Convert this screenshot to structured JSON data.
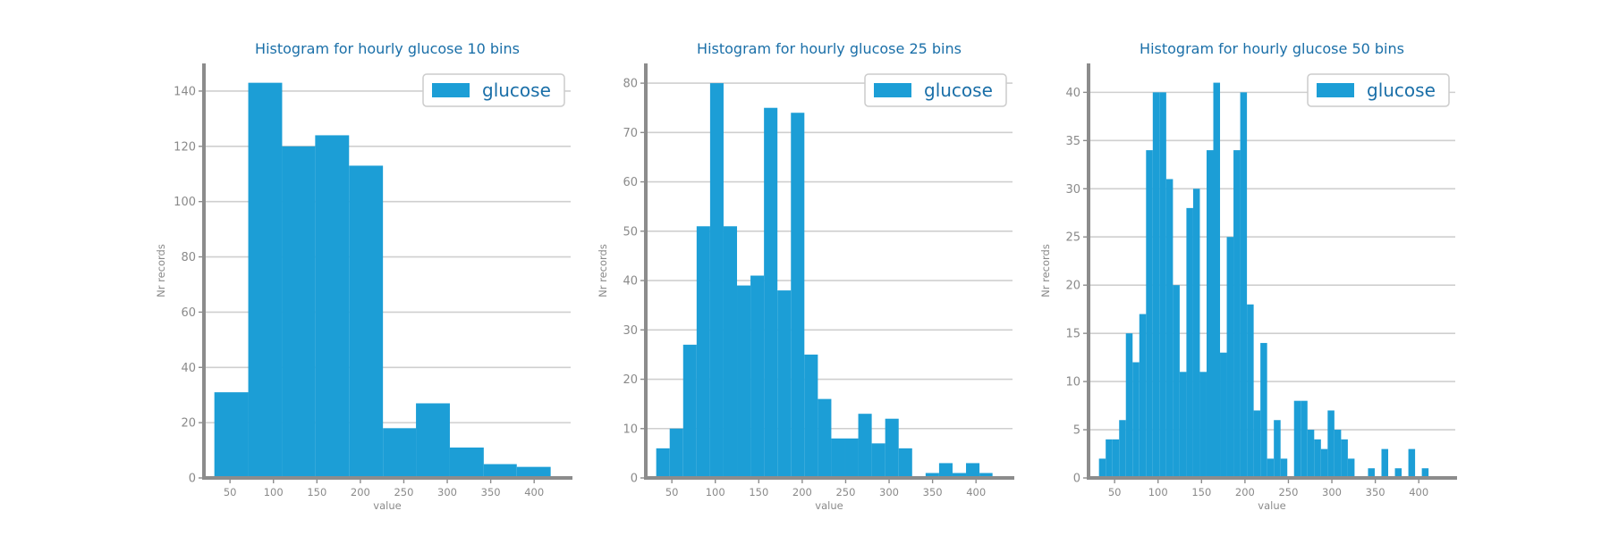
{
  "chart_data": [
    {
      "type": "bar",
      "title": "Histogram for hourly glucose 10 bins",
      "xlabel": "value",
      "ylabel": "Nr records",
      "legend": {
        "label": "glucose",
        "position": "top-right"
      },
      "color": "#1c9ed6",
      "xlim": [
        20,
        442
      ],
      "ylim": [
        0,
        150
      ],
      "xticks": [
        50,
        100,
        150,
        200,
        250,
        300,
        350,
        400
      ],
      "yticks": [
        0,
        20,
        40,
        60,
        80,
        100,
        120,
        140
      ],
      "grid": "horizontal",
      "bin_edges": [
        32,
        71,
        110,
        148,
        187,
        226,
        264,
        303,
        342,
        380,
        419
      ],
      "values": [
        31,
        143,
        120,
        124,
        113,
        18,
        27,
        11,
        5,
        4
      ]
    },
    {
      "type": "bar",
      "title": "Histogram for hourly glucose 25 bins",
      "xlabel": "value",
      "ylabel": "Nr records",
      "legend": {
        "label": "glucose",
        "position": "top-right"
      },
      "color": "#1c9ed6",
      "xlim": [
        20,
        442
      ],
      "ylim": [
        0,
        84
      ],
      "xticks": [
        50,
        100,
        150,
        200,
        250,
        300,
        350,
        400
      ],
      "yticks": [
        0,
        10,
        20,
        30,
        40,
        50,
        60,
        70,
        80
      ],
      "grid": "horizontal",
      "bin_edges": [
        32,
        47.5,
        63,
        78.5,
        94,
        109.5,
        125,
        140.5,
        156,
        171.5,
        187,
        202.5,
        218,
        233.5,
        249,
        264.5,
        280,
        295.5,
        311,
        326.5,
        342,
        357.5,
        373,
        388.5,
        404,
        419
      ],
      "values": [
        6,
        10,
        27,
        51,
        80,
        51,
        39,
        41,
        75,
        38,
        74,
        25,
        16,
        8,
        8,
        13,
        7,
        12,
        6,
        0,
        1,
        3,
        1,
        3,
        1
      ]
    },
    {
      "type": "bar",
      "title": "Histogram for hourly glucose 50 bins",
      "xlabel": "value",
      "ylabel": "Nr records",
      "legend": {
        "label": "glucose",
        "position": "top-right"
      },
      "color": "#1c9ed6",
      "xlim": [
        20,
        442
      ],
      "ylim": [
        0,
        43
      ],
      "xticks": [
        50,
        100,
        150,
        200,
        250,
        300,
        350,
        400
      ],
      "yticks": [
        0,
        5,
        10,
        15,
        20,
        25,
        30,
        35,
        40
      ],
      "grid": "horizontal",
      "bin_edges": [
        32,
        39.74,
        47.48,
        55.22,
        62.96,
        70.7,
        78.44,
        86.18,
        93.92,
        101.66,
        109.4,
        117.14,
        124.88,
        132.62,
        140.36,
        148.1,
        155.84,
        163.58,
        171.32,
        179.06,
        186.8,
        194.54,
        202.28,
        210.02,
        217.76,
        225.5,
        233.24,
        240.98,
        248.72,
        256.46,
        264.2,
        271.94,
        279.68,
        287.42,
        295.16,
        302.9,
        310.64,
        318.38,
        326.12,
        333.86,
        341.6,
        349.34,
        357.08,
        364.82,
        372.56,
        380.3,
        388.04,
        395.78,
        403.52,
        411.26,
        419
      ],
      "values": [
        2,
        4,
        4,
        6,
        15,
        12,
        17,
        34,
        40,
        40,
        31,
        20,
        11,
        28,
        30,
        11,
        34,
        41,
        13,
        25,
        34,
        40,
        18,
        7,
        14,
        2,
        6,
        2,
        0,
        8,
        8,
        5,
        4,
        3,
        7,
        5,
        4,
        2,
        0,
        0,
        1,
        0,
        3,
        0,
        1,
        0,
        3,
        0,
        1,
        0
      ]
    }
  ]
}
